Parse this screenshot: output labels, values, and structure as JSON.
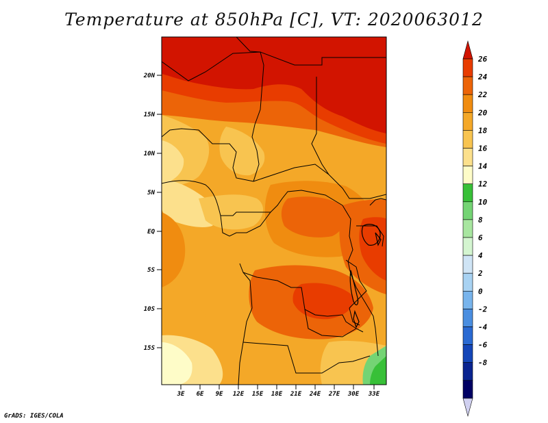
{
  "title": "Temperature at 850hPa [C], VT: 2020063012",
  "credit": "GrADS: IGES/COLA",
  "map": {
    "lat_labels": [
      "20N",
      "15N",
      "10N",
      "5N",
      "EQ",
      "5S",
      "10S",
      "15S"
    ],
    "lon_labels": [
      "3E",
      "6E",
      "9E",
      "12E",
      "15E",
      "18E",
      "21E",
      "24E",
      "27E",
      "30E",
      "33E"
    ]
  },
  "colorbar": {
    "levels": [
      "26",
      "24",
      "22",
      "20",
      "18",
      "16",
      "14",
      "12",
      "10",
      "8",
      "6",
      "4",
      "2",
      "0",
      "-2",
      "-4",
      "-6",
      "-8"
    ],
    "colors": [
      "#d21400",
      "#e83c00",
      "#ec6408",
      "#f08c10",
      "#f4a828",
      "#f8c450",
      "#fce08c",
      "#fefcc8",
      "#38c038",
      "#74d474",
      "#a8e6a0",
      "#d4f5d0",
      "#cfe4f5",
      "#a8d2f2",
      "#78b4ec",
      "#4a8ee0",
      "#2a6ad2",
      "#1446b8",
      "#0a2490",
      "#000064",
      "#d0d0f0"
    ]
  }
}
